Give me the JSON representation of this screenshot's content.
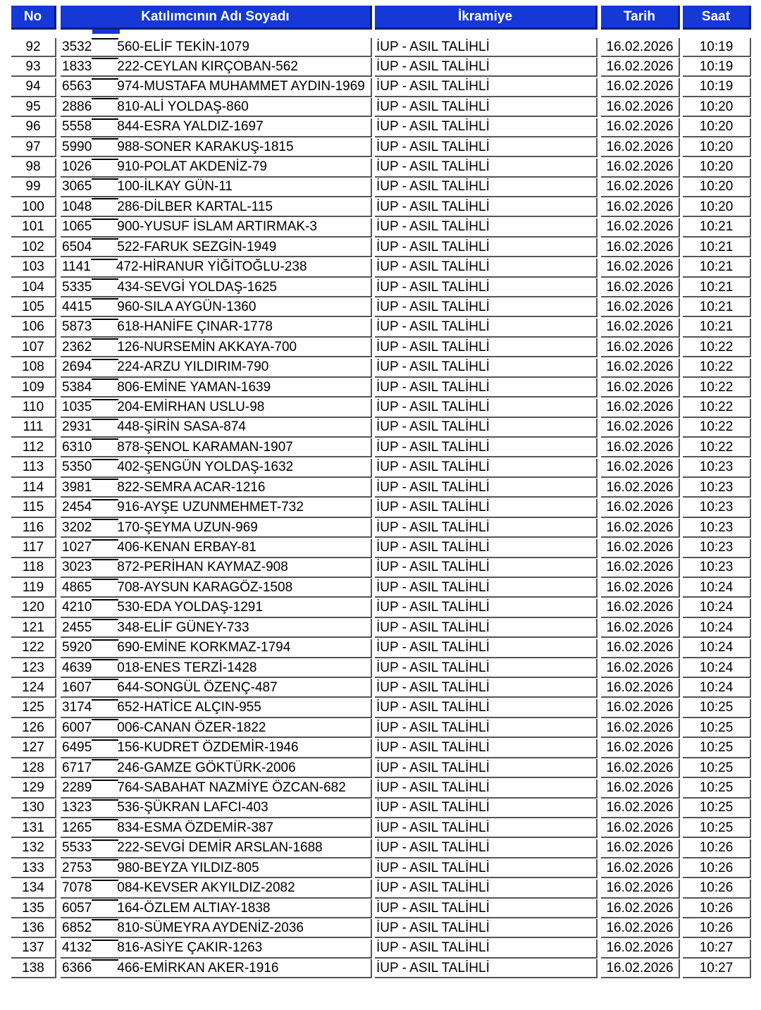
{
  "header": {
    "no": "No",
    "name": "Katılımcının Adı Soyadı",
    "prize": "İkramiye",
    "date": "Tarih",
    "time": "Saat"
  },
  "table": {
    "rows": [
      [
        92,
        "3532",
        "560-ELİF TEKİN-1079",
        "İUP - ASIL TALİHLİ",
        "16.02.2026",
        "10:19"
      ],
      [
        93,
        "1833",
        "222-CEYLAN KIRÇOBAN-562",
        "İUP - ASIL TALİHLİ",
        "16.02.2026",
        "10:19"
      ],
      [
        94,
        "6563",
        "974-MUSTAFA MUHAMMET AYDIN-1969",
        "İUP - ASIL TALİHLİ",
        "16.02.2026",
        "10:19"
      ],
      [
        95,
        "2886",
        "810-ALİ YOLDAŞ-860",
        "İUP - ASIL TALİHLİ",
        "16.02.2026",
        "10:20"
      ],
      [
        96,
        "5558",
        "844-ESRA YALDIZ-1697",
        "İUP - ASIL TALİHLİ",
        "16.02.2026",
        "10:20"
      ],
      [
        97,
        "5990",
        "988-SONER KARAKUŞ-1815",
        "İUP - ASIL TALİHLİ",
        "16.02.2026",
        "10:20"
      ],
      [
        98,
        "1026",
        "910-POLAT AKDENİZ-79",
        "İUP - ASIL TALİHLİ",
        "16.02.2026",
        "10:20"
      ],
      [
        99,
        "3065",
        "100-İLKAY GÜN-11",
        "İUP - ASIL TALİHLİ",
        "16.02.2026",
        "10:20"
      ],
      [
        100,
        "1048",
        "286-DİLBER KARTAL-115",
        "İUP - ASIL TALİHLİ",
        "16.02.2026",
        "10:20"
      ],
      [
        101,
        "1065",
        "900-YUSUF İSLAM ARTIRMAK-3",
        "İUP - ASIL TALİHLİ",
        "16.02.2026",
        "10:21"
      ],
      [
        102,
        "6504",
        "522-FARUK SEZGİN-1949",
        "İUP - ASIL TALİHLİ",
        "16.02.2026",
        "10:21"
      ],
      [
        103,
        "1141",
        "472-HİRANUR YİĞİTOĞLU-238",
        "İUP - ASIL TALİHLİ",
        "16.02.2026",
        "10:21"
      ],
      [
        104,
        "5335",
        "434-SEVGİ YOLDAŞ-1625",
        "İUP - ASIL TALİHLİ",
        "16.02.2026",
        "10:21"
      ],
      [
        105,
        "4415",
        "960-SILA AYGÜN-1360",
        "İUP - ASIL TALİHLİ",
        "16.02.2026",
        "10:21"
      ],
      [
        106,
        "5873",
        "618-HANİFE ÇINAR-1778",
        "İUP - ASIL TALİHLİ",
        "16.02.2026",
        "10:21"
      ],
      [
        107,
        "2362",
        "126-NURSEMİN AKKAYA-700",
        "İUP - ASIL TALİHLİ",
        "16.02.2026",
        "10:22"
      ],
      [
        108,
        "2694",
        "224-ARZU YILDIRIM-790",
        "İUP - ASIL TALİHLİ",
        "16.02.2026",
        "10:22"
      ],
      [
        109,
        "5384",
        "806-EMİNE YAMAN-1639",
        "İUP - ASIL TALİHLİ",
        "16.02.2026",
        "10:22"
      ],
      [
        110,
        "1035",
        "204-EMİRHAN USLU-98",
        "İUP - ASIL TALİHLİ",
        "16.02.2026",
        "10:22"
      ],
      [
        111,
        "2931",
        "448-ŞİRİN SASA-874",
        "İUP - ASIL TALİHLİ",
        "16.02.2026",
        "10:22"
      ],
      [
        112,
        "6310",
        "878-ŞENOL KARAMAN-1907",
        "İUP - ASIL TALİHLİ",
        "16.02.2026",
        "10:22"
      ],
      [
        113,
        "5350",
        "402-ŞENGÜN YOLDAŞ-1632",
        "İUP - ASIL TALİHLİ",
        "16.02.2026",
        "10:23"
      ],
      [
        114,
        "3981",
        "822-SEMRA ACAR-1216",
        "İUP - ASIL TALİHLİ",
        "16.02.2026",
        "10:23"
      ],
      [
        115,
        "2454",
        "916-AYŞE UZUNMEHMET-732",
        "İUP - ASIL TALİHLİ",
        "16.02.2026",
        "10:23"
      ],
      [
        116,
        "3202",
        "170-ŞEYMA UZUN-969",
        "İUP - ASIL TALİHLİ",
        "16.02.2026",
        "10:23"
      ],
      [
        117,
        "1027",
        "406-KENAN ERBAY-81",
        "İUP - ASIL TALİHLİ",
        "16.02.2026",
        "10:23"
      ],
      [
        118,
        "3023",
        "872-PERİHAN KAYMAZ-908",
        "İUP - ASIL TALİHLİ",
        "16.02.2026",
        "10:23"
      ],
      [
        119,
        "4865",
        "708-AYSUN KARAGÖZ-1508",
        "İUP - ASIL TALİHLİ",
        "16.02.2026",
        "10:24"
      ],
      [
        120,
        "4210",
        "530-EDA YOLDAŞ-1291",
        "İUP - ASIL TALİHLİ",
        "16.02.2026",
        "10:24"
      ],
      [
        121,
        "2455",
        "348-ELİF GÜNEY-733",
        "İUP - ASIL TALİHLİ",
        "16.02.2026",
        "10:24"
      ],
      [
        122,
        "5920",
        "690-EMİNE KORKMAZ-1794",
        "İUP - ASIL TALİHLİ",
        "16.02.2026",
        "10:24"
      ],
      [
        123,
        "4639",
        "018-ENES TERZİ-1428",
        "İUP - ASIL TALİHLİ",
        "16.02.2026",
        "10:24"
      ],
      [
        124,
        "1607",
        "644-SONGÜL ÖZENÇ-487",
        "İUP - ASIL TALİHLİ",
        "16.02.2026",
        "10:24"
      ],
      [
        125,
        "3174",
        "652-HATİCE ALÇIN-955",
        "İUP - ASIL TALİHLİ",
        "16.02.2026",
        "10:25"
      ],
      [
        126,
        "6007",
        "006-CANAN ÖZER-1822",
        "İUP - ASIL TALİHLİ",
        "16.02.2026",
        "10:25"
      ],
      [
        127,
        "6495",
        "156-KUDRET ÖZDEMİR-1946",
        "İUP - ASIL TALİHLİ",
        "16.02.2026",
        "10:25"
      ],
      [
        128,
        "6717",
        "246-GAMZE GÖKTÜRK-2006",
        "İUP - ASIL TALİHLİ",
        "16.02.2026",
        "10:25"
      ],
      [
        129,
        "2289",
        "764-SABAHAT NAZMİYE ÖZCAN-682",
        "İUP - ASIL TALİHLİ",
        "16.02.2026",
        "10:25"
      ],
      [
        130,
        "1323",
        "536-ŞÜKRAN LAFCI-403",
        "İUP - ASIL TALİHLİ",
        "16.02.2026",
        "10:25"
      ],
      [
        131,
        "1265",
        "834-ESMA ÖZDEMİR-387",
        "İUP - ASIL TALİHLİ",
        "16.02.2026",
        "10:25"
      ],
      [
        132,
        "5533",
        "222-SEVGİ DEMİR ARSLAN-1688",
        "İUP - ASIL TALİHLİ",
        "16.02.2026",
        "10:26"
      ],
      [
        133,
        "2753",
        "980-BEYZA YILDIZ-805",
        "İUP - ASIL TALİHLİ",
        "16.02.2026",
        "10:26"
      ],
      [
        134,
        "7078",
        "084-KEVSER AKYILDIZ-2082",
        "İUP - ASIL TALİHLİ",
        "16.02.2026",
        "10:26"
      ],
      [
        135,
        "6057",
        "164-ÖZLEM ALTIAY-1838",
        "İUP - ASIL TALİHLİ",
        "16.02.2026",
        "10:26"
      ],
      [
        136,
        "6852",
        "810-SÜMEYRA AYDENİZ-2036",
        "İUP - ASIL TALİHLİ",
        "16.02.2026",
        "10:26"
      ],
      [
        137,
        "4132",
        "816-ASİYE ÇAKIR-1263",
        "İUP - ASIL TALİHLİ",
        "16.02.2026",
        "10:27"
      ],
      [
        138,
        "6366",
        "466-EMİRKAN AKER-1916",
        "İUP - ASIL TALİHLİ",
        "16.02.2026",
        "10:27"
      ]
    ]
  }
}
